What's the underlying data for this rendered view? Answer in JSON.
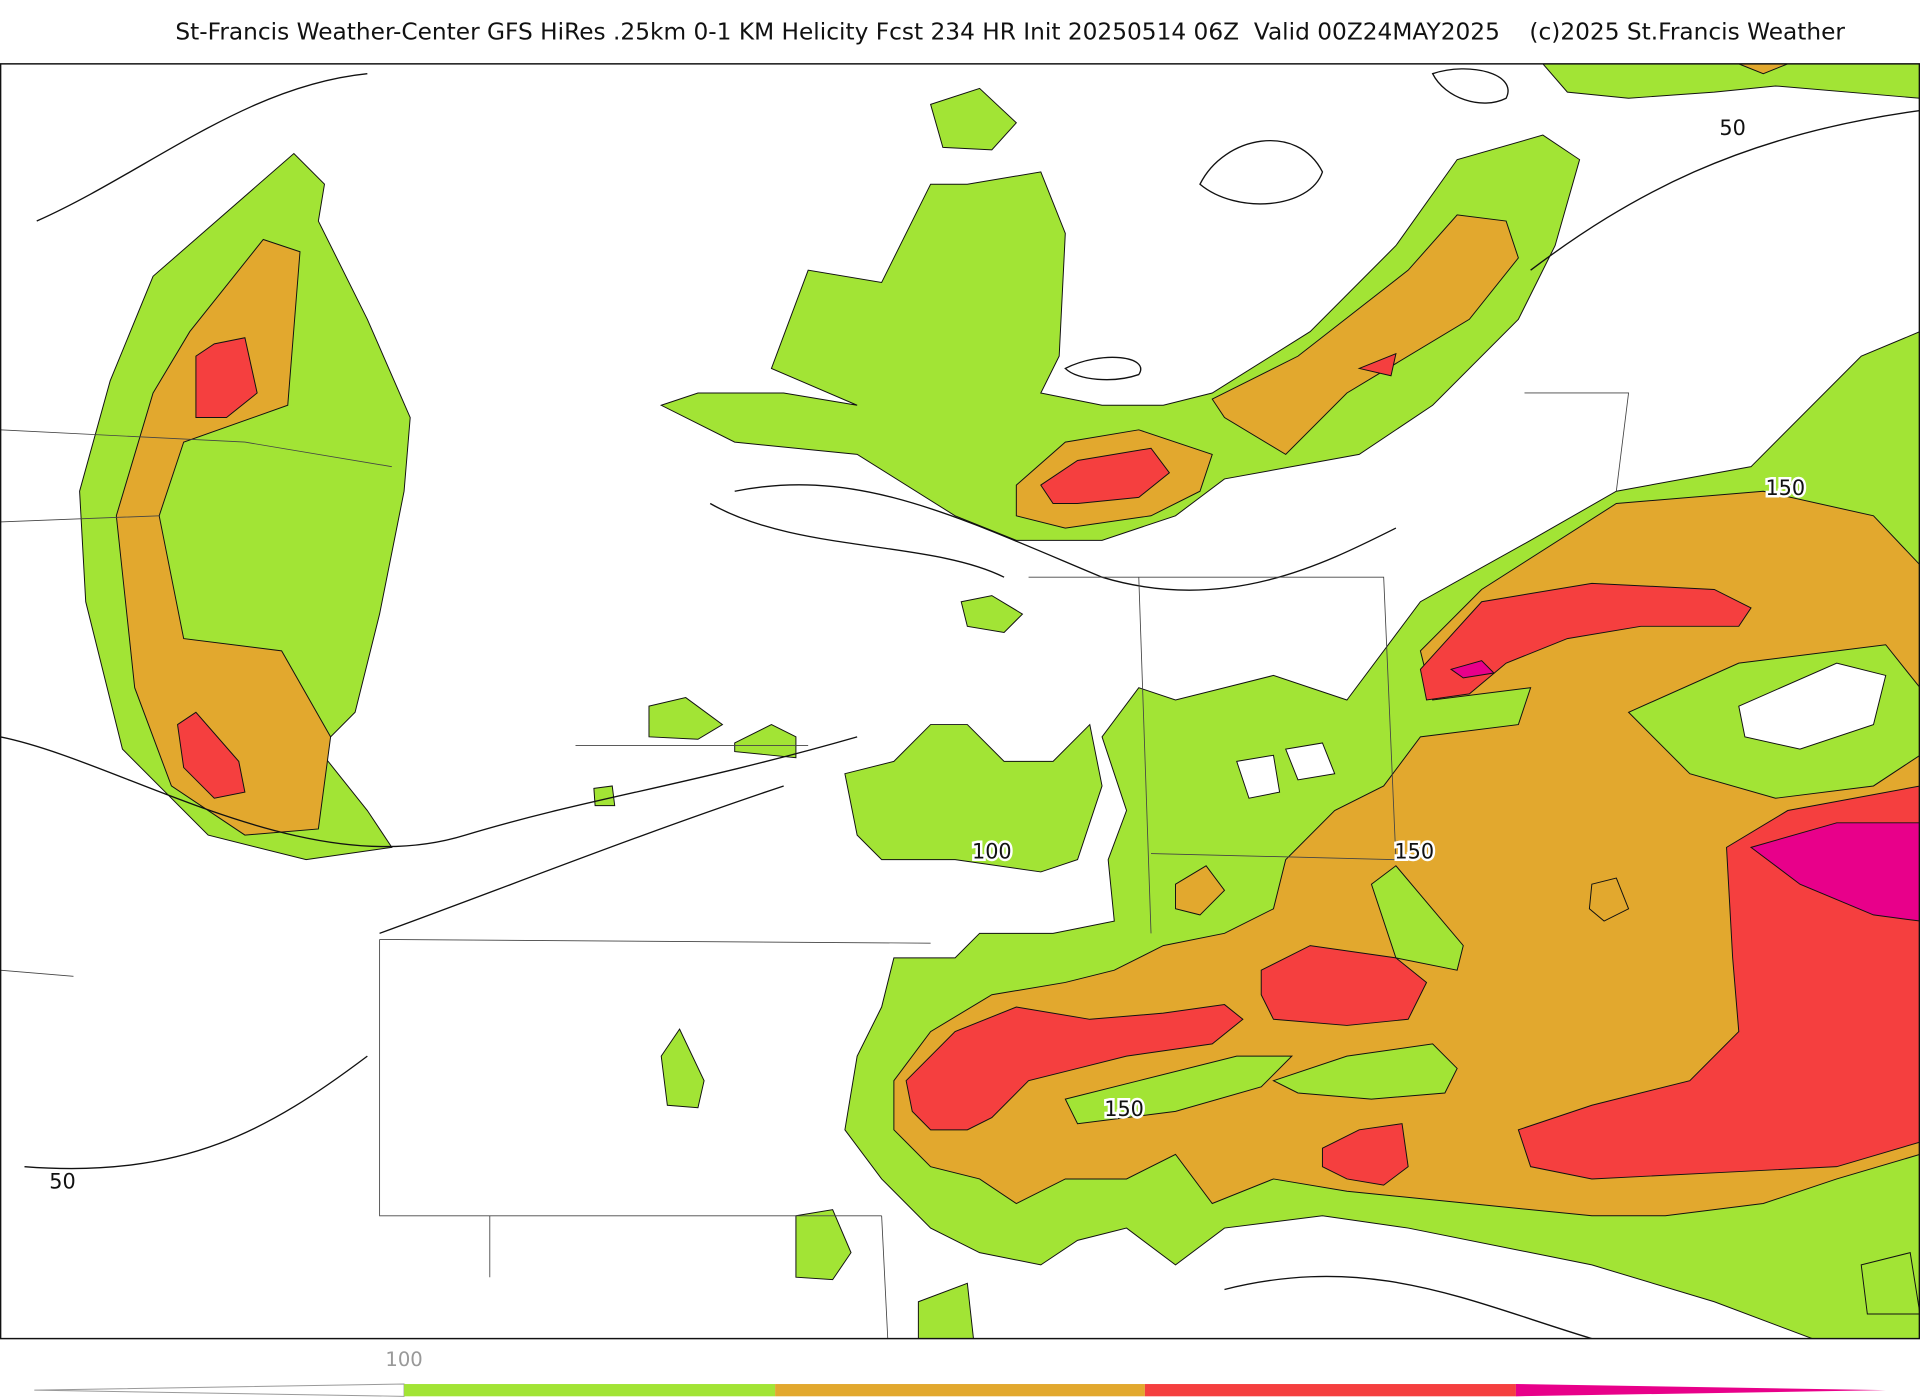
{
  "header": {
    "title": "St-Francis Weather-Center GFS HiRes .25km 0-1 KM Helicity Fcst 234 HR Init 20250514 06Z  Valid 00Z24MAY2025    (c)2025 St.Francis Weather"
  },
  "map": {
    "contour_labels": [
      "50",
      "150",
      "100",
      "150",
      "150",
      "50"
    ]
  },
  "colorbar": {
    "labels": [
      "100"
    ]
  }
}
